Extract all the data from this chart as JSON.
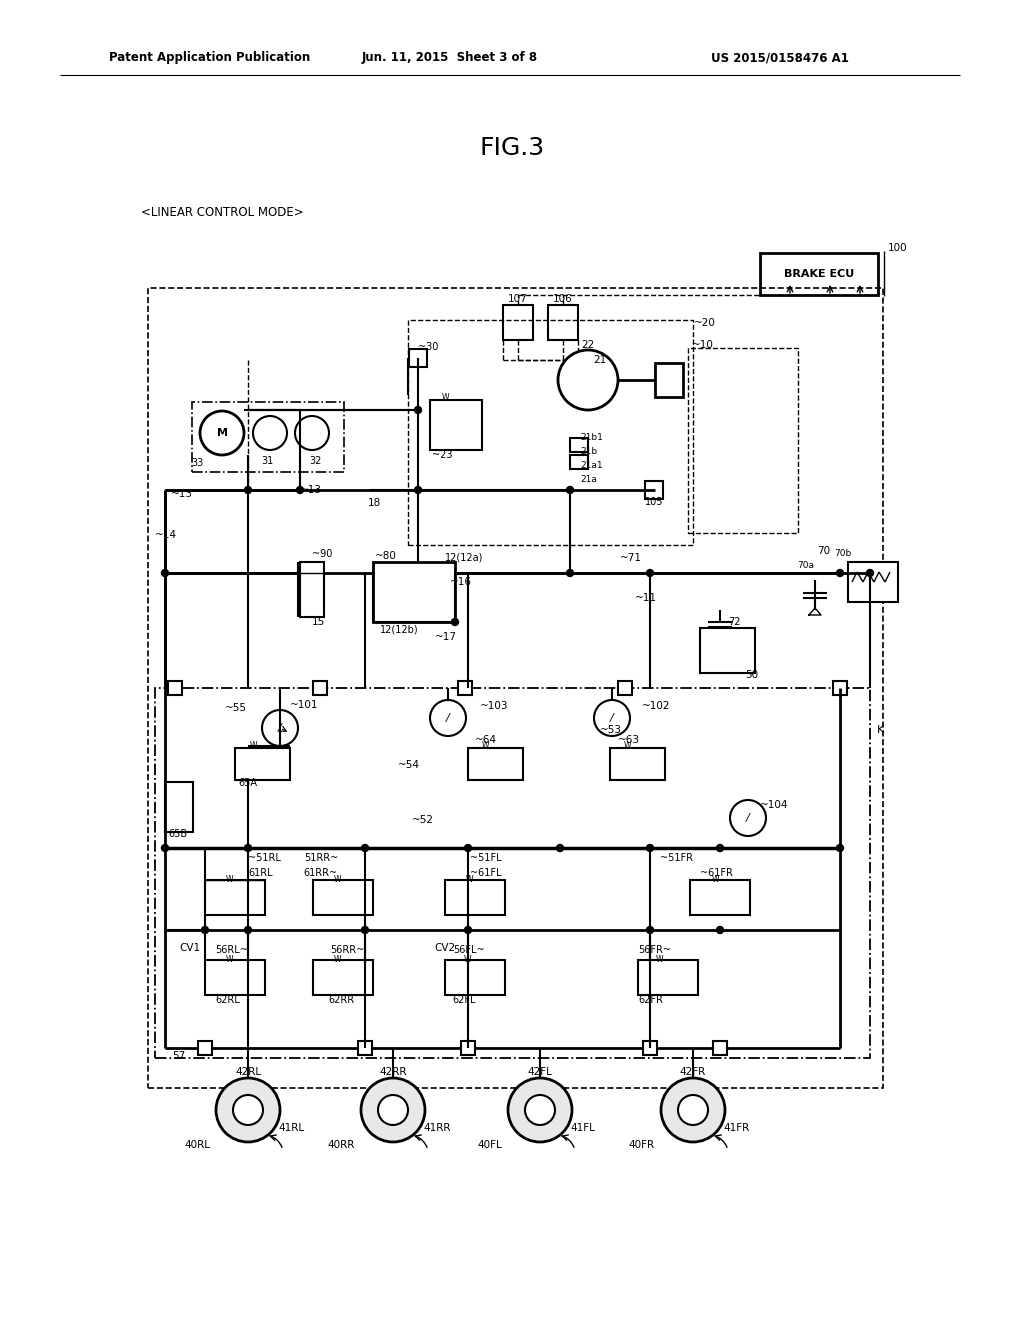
{
  "title": "FIG.3",
  "subtitle": "<LINEAR CONTROL MODE>",
  "header_left": "Patent Application Publication",
  "header_center": "Jun. 11, 2015  Sheet 3 of 8",
  "header_right": "US 2015/0158476 A1",
  "bg_color": "#ffffff",
  "line_color": "#000000",
  "fig_width": 10.24,
  "fig_height": 13.2
}
